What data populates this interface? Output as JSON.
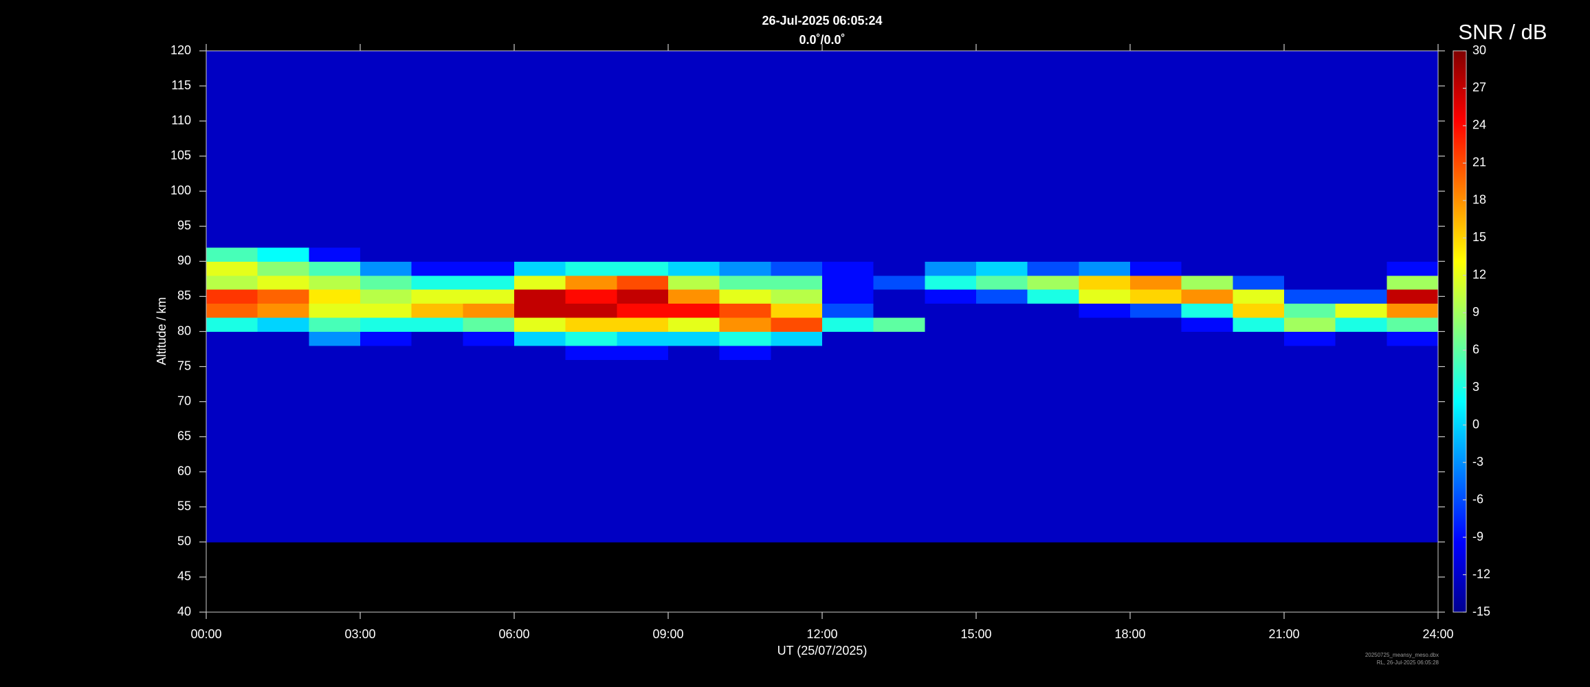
{
  "chart_data": {
    "type": "heatmap",
    "title": "26-Jul-2025 06:05:24",
    "subtitle": "0.0˚/0.0˚",
    "xlabel": "UT (25/07/2025)",
    "ylabel": "Altitude / km",
    "colorbar_label": "SNR / dB",
    "colormap": "jet",
    "footnotes": [
      "20250725_meansy_meso.dbx",
      "RL, 26-Jul-2025 06:05:28"
    ],
    "xlim": [
      0,
      24
    ],
    "xticks": [
      {
        "value": 0,
        "label": "00:00"
      },
      {
        "value": 3,
        "label": "03:00"
      },
      {
        "value": 6,
        "label": "06:00"
      },
      {
        "value": 9,
        "label": "09:00"
      },
      {
        "value": 12,
        "label": "12:00"
      },
      {
        "value": 15,
        "label": "15:00"
      },
      {
        "value": 18,
        "label": "18:00"
      },
      {
        "value": 21,
        "label": "21:00"
      },
      {
        "value": 24,
        "label": "24:00"
      }
    ],
    "ylim": [
      40,
      120
    ],
    "yticks": [
      40,
      45,
      50,
      55,
      60,
      65,
      70,
      75,
      80,
      85,
      90,
      95,
      100,
      105,
      110,
      115,
      120
    ],
    "zlim": [
      -15,
      30
    ],
    "zticks": [
      -15,
      -12,
      -9,
      -6,
      -3,
      0,
      3,
      6,
      9,
      12,
      15,
      18,
      21,
      24,
      27,
      30
    ],
    "xbins": [
      0,
      1,
      2,
      3,
      4,
      5,
      6,
      7,
      8,
      9,
      10,
      11,
      12,
      13,
      14,
      15,
      16,
      17,
      18,
      19,
      20,
      21,
      22,
      23,
      24
    ],
    "ybins": [
      50,
      76,
      78,
      80,
      82,
      84,
      86,
      88,
      90,
      92,
      120
    ],
    "values": [
      [
        -12,
        -12,
        -12,
        3,
        20,
        22,
        10,
        12,
        5,
        -12
      ],
      [
        -12,
        -12,
        -12,
        0,
        18,
        20,
        12,
        8,
        2,
        -12
      ],
      [
        -12,
        -12,
        -3,
        5,
        12,
        14,
        10,
        5,
        -9,
        -12
      ],
      [
        -12,
        -12,
        -9,
        3,
        12,
        10,
        6,
        -3,
        -12,
        -12
      ],
      [
        -12,
        -12,
        -12,
        3,
        16,
        12,
        3,
        -9,
        -12,
        -12
      ],
      [
        -12,
        -12,
        -9,
        6,
        18,
        12,
        3,
        -9,
        -12,
        -12
      ],
      [
        -12,
        -12,
        0,
        12,
        27,
        27,
        12,
        0,
        -12,
        -12
      ],
      [
        -12,
        -9,
        3,
        15,
        27,
        24,
        18,
        3,
        -12,
        -12
      ],
      [
        -12,
        -9,
        0,
        15,
        24,
        27,
        21,
        3,
        -12,
        -12
      ],
      [
        -12,
        -12,
        0,
        12,
        24,
        18,
        10,
        0,
        -12,
        -12
      ],
      [
        -12,
        -9,
        3,
        18,
        21,
        12,
        6,
        -3,
        -12,
        -12
      ],
      [
        -12,
        -12,
        0,
        21,
        15,
        10,
        6,
        -6,
        -12,
        -12
      ],
      [
        -12,
        -12,
        -12,
        3,
        -6,
        -9,
        -9,
        -9,
        -12,
        -12
      ],
      [
        -12,
        -12,
        -12,
        6,
        -12,
        -12,
        -6,
        -12,
        -12,
        -12
      ],
      [
        -12,
        -12,
        -12,
        -12,
        -12,
        -9,
        3,
        -3,
        -12,
        -12
      ],
      [
        -12,
        -12,
        -12,
        -12,
        -12,
        -6,
        6,
        0,
        -12,
        -12
      ],
      [
        -12,
        -12,
        -12,
        -12,
        -12,
        3,
        9,
        -6,
        -12,
        -12
      ],
      [
        -12,
        -12,
        -12,
        -12,
        -9,
        12,
        15,
        -3,
        -12,
        -12
      ],
      [
        -12,
        -12,
        -12,
        -12,
        -6,
        15,
        18,
        -9,
        -12,
        -12
      ],
      [
        -12,
        -12,
        -12,
        -9,
        3,
        18,
        9,
        -12,
        -12,
        -12
      ],
      [
        -12,
        -12,
        -12,
        3,
        15,
        12,
        -6,
        -12,
        -12,
        -12
      ],
      [
        -12,
        -12,
        -9,
        9,
        6,
        -6,
        -12,
        -12,
        -12,
        -12
      ],
      [
        -12,
        -12,
        -12,
        3,
        12,
        -6,
        -12,
        -12,
        -12,
        -12
      ],
      [
        -12,
        -12,
        -9,
        6,
        18,
        27,
        9,
        -9,
        -12,
        -12
      ]
    ]
  }
}
